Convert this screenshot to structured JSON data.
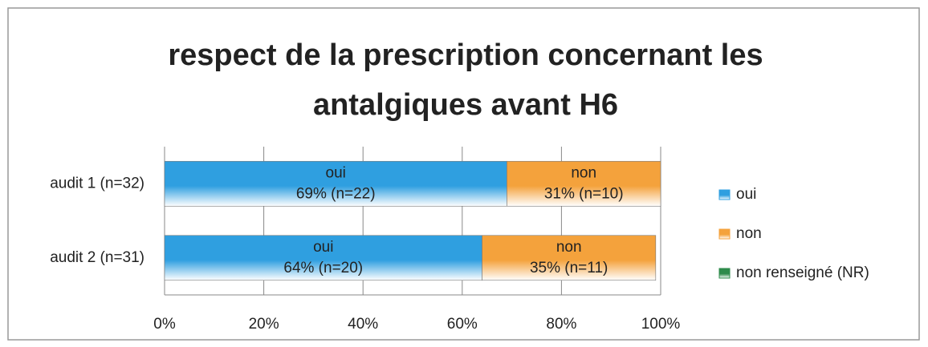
{
  "chart_data": {
    "type": "bar",
    "orientation": "horizontal",
    "stacked": true,
    "title": "respect de la prescription concernant les antalgiques avant H6",
    "categories": [
      "audit 1 (n=32)",
      "audit 2 (n=31)"
    ],
    "series": [
      {
        "name": "oui",
        "color": "#2f9fe0",
        "values": [
          69,
          64
        ],
        "value_labels": [
          "69% (n=22)",
          "64% (n=20)"
        ]
      },
      {
        "name": "non",
        "color": "#f4a23c",
        "values": [
          31,
          35
        ],
        "value_labels": [
          "31% (n=10)",
          "35% (n=11)"
        ]
      },
      {
        "name": "non renseigné (NR)",
        "color": "#2e8b4b",
        "values": [
          0,
          0
        ]
      }
    ],
    "xlim": [
      0,
      100
    ],
    "xticks": [
      {
        "value": 0,
        "label": "0%"
      },
      {
        "value": 20,
        "label": "20%"
      },
      {
        "value": 40,
        "label": "40%"
      },
      {
        "value": 60,
        "label": "60%"
      },
      {
        "value": 80,
        "label": "80%"
      },
      {
        "value": 100,
        "label": "100%"
      }
    ],
    "grid": true,
    "legend": "right"
  }
}
